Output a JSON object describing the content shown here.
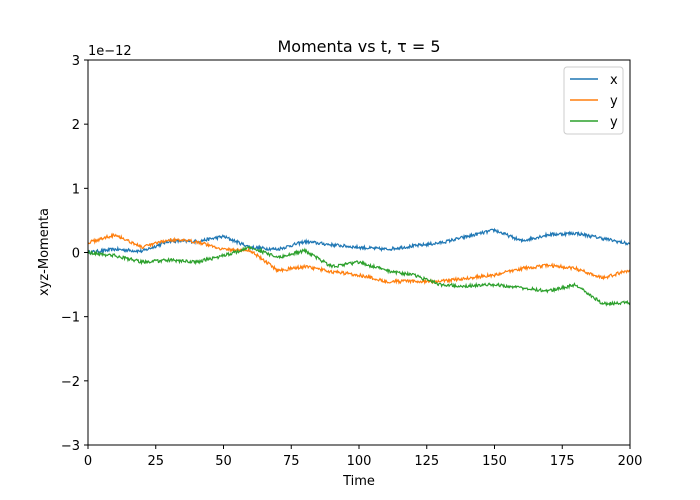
{
  "chart_data": {
    "type": "line",
    "title": "Momenta vs t, τ = 5",
    "xlabel": "Time",
    "ylabel": "xyz-Momenta",
    "offset_text": "1e−12",
    "xlim": [
      0,
      200
    ],
    "ylim": [
      -3,
      3
    ],
    "x_ticks": [
      0,
      25,
      50,
      75,
      100,
      125,
      150,
      175,
      200
    ],
    "x_tick_labels": [
      "0",
      "25",
      "50",
      "75",
      "100",
      "125",
      "150",
      "175",
      "200"
    ],
    "y_ticks": [
      -3,
      -2,
      -1,
      0,
      1,
      2,
      3
    ],
    "y_tick_labels": [
      "−3",
      "−2",
      "−1",
      "0",
      "1",
      "2",
      "3"
    ],
    "grid": false,
    "legend_position": "top-right",
    "x": [
      0,
      10,
      20,
      30,
      40,
      50,
      60,
      70,
      80,
      90,
      100,
      110,
      120,
      130,
      140,
      150,
      160,
      170,
      180,
      190,
      200
    ],
    "series": [
      {
        "name": "x",
        "color": "#1f77b4",
        "values": [
          0.0,
          0.05,
          0.02,
          0.18,
          0.17,
          0.25,
          0.08,
          0.05,
          0.17,
          0.12,
          0.08,
          0.05,
          0.1,
          0.15,
          0.25,
          0.35,
          0.18,
          0.28,
          0.3,
          0.22,
          0.13
        ]
      },
      {
        "name": "y",
        "color": "#ff7f0e",
        "values": [
          0.15,
          0.28,
          0.08,
          0.2,
          0.17,
          0.05,
          0.03,
          -0.28,
          -0.22,
          -0.3,
          -0.35,
          -0.45,
          -0.45,
          -0.45,
          -0.4,
          -0.35,
          -0.25,
          -0.2,
          -0.25,
          -0.4,
          -0.27
        ]
      },
      {
        "name": "y",
        "color": "#2ca02c",
        "values": [
          0.0,
          -0.05,
          -0.15,
          -0.12,
          -0.15,
          -0.05,
          0.08,
          -0.08,
          0.03,
          -0.22,
          -0.15,
          -0.28,
          -0.35,
          -0.5,
          -0.52,
          -0.5,
          -0.55,
          -0.6,
          -0.5,
          -0.8,
          -0.78
        ]
      }
    ]
  }
}
